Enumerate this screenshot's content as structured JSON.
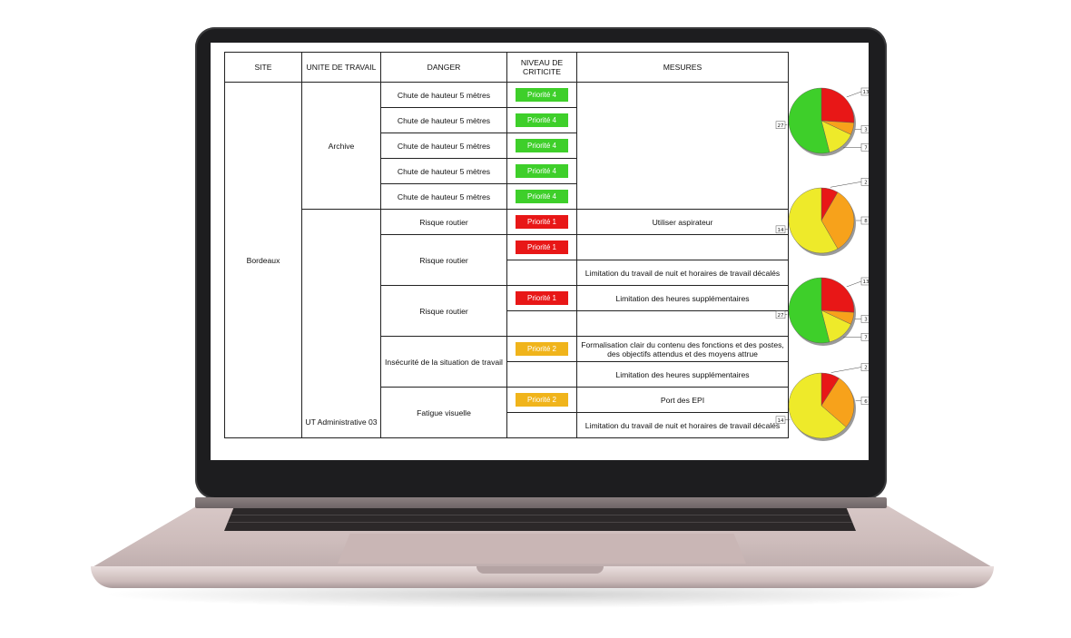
{
  "table": {
    "headers": {
      "site": "SITE",
      "unit": "UNITE DE TRAVAIL",
      "danger": "DANGER",
      "level": "NIVEAU DE CRITICITE",
      "mesures": "MESURES"
    },
    "site": "Bordeaux",
    "units": [
      "Archive",
      "UT Administrative 03"
    ],
    "rows": [
      {
        "danger": "Chute de hauteur 5 mètres",
        "level": "Priorité 4"
      },
      {
        "danger": "Chute de hauteur 5 mètres",
        "level": "Priorité 4"
      },
      {
        "danger": "Chute de hauteur 5 mètres",
        "level": "Priorité 4"
      },
      {
        "danger": "Chute de hauteur 5 mètres",
        "level": "Priorité 4"
      },
      {
        "danger": "Chute de hauteur 5 mètres",
        "level": "Priorité 4"
      },
      {
        "danger": "Risque routier",
        "level": "Priorité 1",
        "mesure": "Utiliser aspirateur"
      },
      {
        "danger": "Risque routier",
        "level": "Priorité 1",
        "mesure": "Limitation du travail de nuit et horaires de travail décalés"
      },
      {
        "danger": "Risque routier",
        "level": "Priorité 1",
        "mesure": "Limitation des heures supplémentaires"
      },
      {
        "danger": "Insécurité de la situation de travail",
        "level": "Priorité 2",
        "mesure1": "Formalisation clair du contenu des fonctions et des postes, des objectifs attendus et des moyens attrue",
        "mesure2": "Limitation des heures supplémentaires"
      },
      {
        "danger": "Fatigue visuelle",
        "level": "Priorité 2",
        "mesure1": "Port des EPI",
        "mesure2": "Limitation du travail de nuit et horaires de travail décalés"
      }
    ]
  },
  "colors": {
    "red": "#e81717",
    "orange": "#f7a21b",
    "yellow": "#eeea2a",
    "green": "#3ecf2a"
  },
  "pies": [
    {
      "values": [
        13,
        3,
        7,
        27
      ],
      "labels": [
        "13",
        "3",
        "7",
        "27"
      ],
      "colors": [
        "red",
        "orange",
        "yellow",
        "green"
      ]
    },
    {
      "values": [
        2,
        8,
        14
      ],
      "labels": [
        "2",
        "8",
        "14"
      ],
      "colors": [
        "red",
        "orange",
        "yellow"
      ]
    },
    {
      "values": [
        13,
        3,
        7,
        27
      ],
      "labels": [
        "13",
        "3",
        "7",
        "27"
      ],
      "colors": [
        "red",
        "orange",
        "yellow",
        "green"
      ]
    },
    {
      "values": [
        2,
        6,
        14
      ],
      "labels": [
        "2",
        "6",
        "14"
      ],
      "colors": [
        "red",
        "orange",
        "yellow"
      ]
    }
  ]
}
